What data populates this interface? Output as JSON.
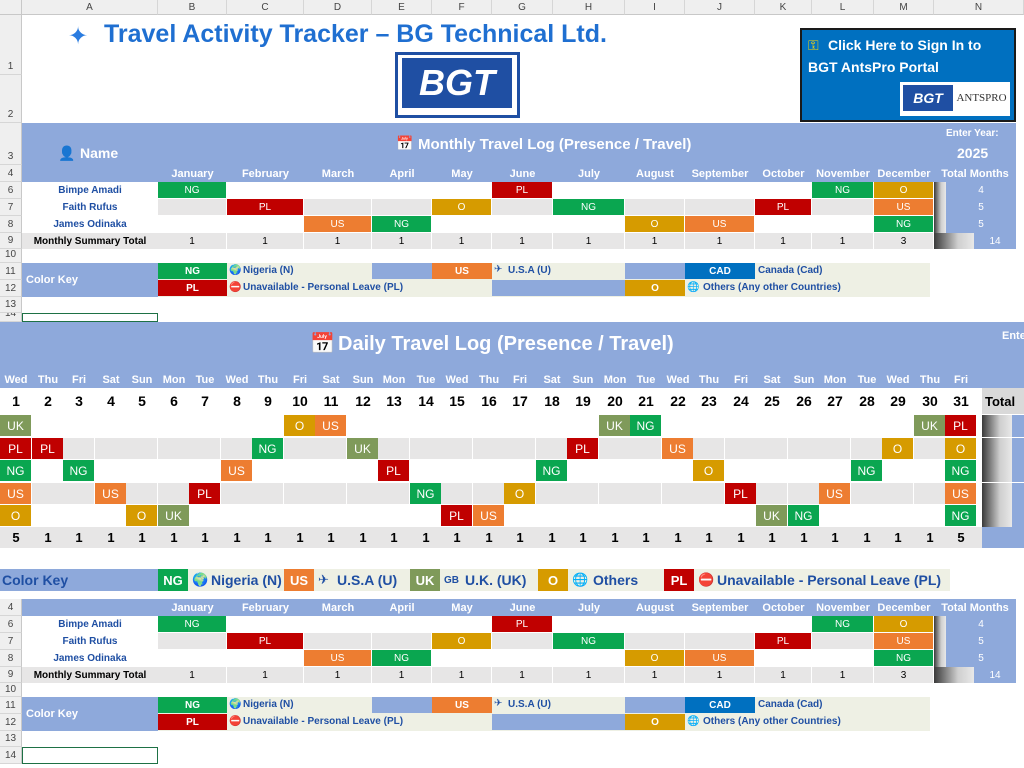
{
  "title": "Travel Activity Tracker – BG Technical Ltd.",
  "logo_text": "BGT",
  "portal": {
    "line1": "Click Here to Sign In to",
    "line2": "BGT AntsPro Portal",
    "logo_left": "BGT",
    "logo_right": "ANTSPRO"
  },
  "columns": [
    "A",
    "B",
    "C",
    "D",
    "E",
    "F",
    "G",
    "H",
    "I",
    "J",
    "K",
    "L",
    "M",
    "N"
  ],
  "row_numbers_top": [
    "1",
    "2",
    "3",
    "4",
    "6",
    "7",
    "8",
    "9",
    "10",
    "11",
    "12",
    "13",
    "14"
  ],
  "monthly": {
    "name_header": "Name",
    "title": "Monthly Travel Log (Presence / Travel)",
    "enter_year_label": "Enter Year:",
    "year": "2025",
    "months": [
      "January",
      "February",
      "March",
      "April",
      "May",
      "June",
      "July",
      "August",
      "September",
      "October",
      "November",
      "December"
    ],
    "total_header": "Total Months",
    "people": [
      {
        "name": "Bimpe Amadi",
        "cells": [
          "NG",
          "",
          "",
          "",
          "",
          "PL",
          "",
          "",
          "",
          "",
          "NG",
          "O"
        ],
        "total": "4"
      },
      {
        "name": "Faith Rufus",
        "cells": [
          "",
          "PL",
          "",
          "",
          "O",
          "",
          "NG",
          "",
          "",
          "PL",
          "",
          "US"
        ],
        "total": "5"
      },
      {
        "name": "James Odinaka",
        "cells": [
          "",
          "",
          "US",
          "NG",
          "",
          "",
          "",
          "O",
          "US",
          "",
          "",
          "NG"
        ],
        "total": "5"
      }
    ],
    "summary_label": "Monthly Summary Total",
    "summary": [
      "1",
      "1",
      "1",
      "1",
      "1",
      "1",
      "1",
      "1",
      "1",
      "1",
      "1",
      "3"
    ],
    "summary_total": "14"
  },
  "color_key": {
    "label": "Color Key",
    "ng_code": "NG",
    "ng_text": "Nigeria (N)",
    "us_code": "US",
    "us_text": "U.S.A (U)",
    "cad_code": "CAD",
    "cad_text": "Canada (Cad)",
    "pl_code": "PL",
    "pl_text": "Unavailable - Personal Leave (PL)",
    "o_code": "O",
    "o_text": "Others (Any other Countries)"
  },
  "daily": {
    "title": "Daily Travel Log (Presence / Travel)",
    "enter_cut": "Ente",
    "day_names": [
      "Wed",
      "Thu",
      "Fri",
      "Sat",
      "Sun",
      "Mon",
      "Tue",
      "Wed",
      "Thu",
      "Fri",
      "Sat",
      "Sun",
      "Mon",
      "Tue",
      "Wed",
      "Thu",
      "Fri",
      "Sat",
      "Sun",
      "Mon",
      "Tue",
      "Wed",
      "Thu",
      "Fri",
      "Sat",
      "Sun",
      "Mon",
      "Tue",
      "Wed",
      "Thu",
      "Fri"
    ],
    "day_numbers": [
      "1",
      "2",
      "3",
      "4",
      "5",
      "6",
      "7",
      "8",
      "9",
      "10",
      "11",
      "12",
      "13",
      "14",
      "15",
      "16",
      "17",
      "18",
      "19",
      "20",
      "21",
      "22",
      "23",
      "24",
      "25",
      "26",
      "27",
      "28",
      "29",
      "30",
      "31"
    ],
    "total_label": "Total",
    "rows": [
      [
        "UK",
        "",
        "",
        "",
        "",
        "",
        "",
        "",
        "",
        "O",
        "US",
        "",
        "",
        "",
        "",
        "",
        "",
        "",
        "",
        "UK",
        "NG",
        "",
        "",
        "",
        "",
        "",
        "",
        "",
        "",
        "UK",
        "PL"
      ],
      [
        "PL",
        "PL",
        "",
        "",
        "",
        "",
        "",
        "",
        "NG",
        "",
        "",
        "UK",
        "",
        "",
        "",
        "",
        "",
        "",
        "PL",
        "",
        "",
        "US",
        "",
        "",
        "",
        "",
        "",
        "",
        "O",
        "",
        "O"
      ],
      [
        "NG",
        "",
        "NG",
        "",
        "",
        "",
        "",
        "US",
        "",
        "",
        "",
        "",
        "PL",
        "",
        "",
        "",
        "",
        "NG",
        "",
        "",
        "",
        "",
        "O",
        "",
        "",
        "",
        "",
        "NG",
        "",
        "",
        "NG"
      ],
      [
        "US",
        "",
        "",
        "US",
        "",
        "",
        "PL",
        "",
        "",
        "",
        "",
        "",
        "",
        "NG",
        "",
        "",
        "O",
        "",
        "",
        "",
        "",
        "",
        "",
        "PL",
        "",
        "",
        "US",
        "",
        "",
        "",
        "US"
      ],
      [
        "O",
        "",
        "",
        "",
        "O",
        "UK",
        "",
        "",
        "",
        "",
        "",
        "",
        "",
        "",
        "PL",
        "US",
        "",
        "",
        "",
        "",
        "",
        "",
        "",
        "",
        "UK",
        "NG",
        "",
        "",
        "",
        "",
        "NG"
      ]
    ],
    "totals": [
      "5",
      "1",
      "1",
      "1",
      "1",
      "1",
      "1",
      "1",
      "1",
      "1",
      "1",
      "1",
      "1",
      "1",
      "1",
      "1",
      "1",
      "1",
      "1",
      "1",
      "1",
      "1",
      "1",
      "1",
      "1",
      "1",
      "1",
      "1",
      "1",
      "1",
      "5"
    ]
  },
  "daily_key": {
    "label": "Color Key",
    "ng_code": "NG",
    "ng_text": "Nigeria (N)",
    "us_code": "US",
    "us_text": "U.S.A (U)",
    "uk_code": "UK",
    "uk_prefix": "GB",
    "uk_text": "U.K. (UK)",
    "o_code": "O",
    "o_text": "Others",
    "pl_code": "PL",
    "pl_text": "Unavailable - Personal Leave (PL)"
  }
}
